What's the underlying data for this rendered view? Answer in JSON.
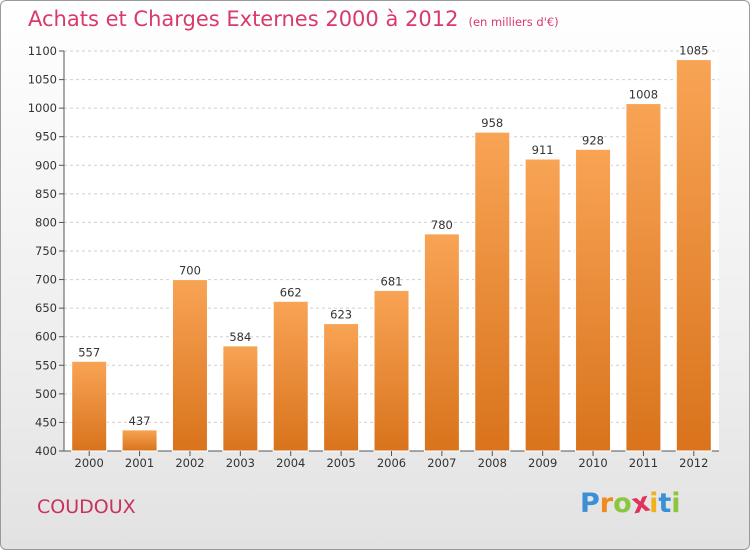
{
  "title": "Achats et Charges Externes 2000 à 2012",
  "subtitle": "(en milliers d'€)",
  "commune": "COUDOUX",
  "logo": {
    "letters": [
      "P",
      "r",
      "o",
      "x",
      "i",
      "t",
      "i"
    ],
    "colors": [
      "#3a8fd6",
      "#f08a1c",
      "#8cc63f",
      "#e0325a",
      "#f0b21c",
      "#3a8fd6",
      "#8cc63f"
    ]
  },
  "colors": {
    "bar_light": "#f8a455",
    "bar_dark": "#d9731c",
    "title": "#d93a6a"
  },
  "chart_data": {
    "type": "bar",
    "categories": [
      "2000",
      "2001",
      "2002",
      "2003",
      "2004",
      "2005",
      "2006",
      "2007",
      "2008",
      "2009",
      "2010",
      "2011",
      "2012"
    ],
    "values": [
      557,
      437,
      700,
      584,
      662,
      623,
      681,
      780,
      958,
      911,
      928,
      1008,
      1085
    ],
    "ylim": [
      400,
      1100
    ],
    "yticks": [
      400,
      450,
      500,
      550,
      600,
      650,
      700,
      750,
      800,
      850,
      900,
      950,
      1000,
      1050,
      1100
    ],
    "grid": true,
    "legend": "none"
  }
}
